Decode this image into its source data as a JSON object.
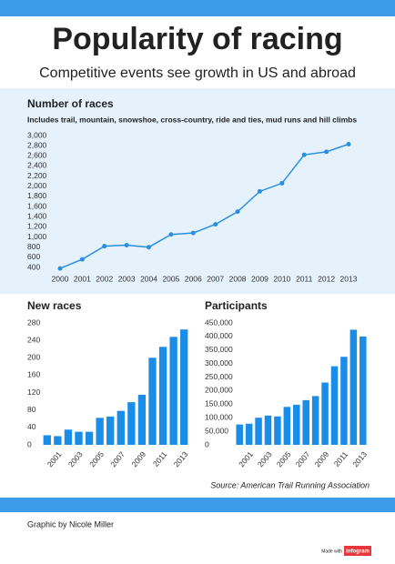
{
  "header": {
    "title": "Popularity of racing",
    "subtitle": "Competitive events see growth in US and abroad"
  },
  "chart_data": [
    {
      "type": "line",
      "title": "Number of races",
      "subtitle": "Includes trail, mountain, snowshoe, cross-country, ride and ties, mud runs and hill climbs",
      "categories": [
        "2000",
        "2001",
        "2002",
        "2003",
        "2004",
        "2005",
        "2006",
        "2007",
        "2008",
        "2009",
        "2010",
        "2011",
        "2012",
        "2013"
      ],
      "values": [
        380,
        560,
        820,
        840,
        800,
        1050,
        1080,
        1250,
        1500,
        1900,
        2060,
        2620,
        2680,
        2830
      ],
      "color": "#2b8fe0",
      "ylim": [
        400,
        3000
      ],
      "yticks": [
        400,
        600,
        800,
        {
          "value": 1000,
          "label": "1,000"
        },
        {
          "value": 1200,
          "label": "1,200"
        },
        {
          "value": 1400,
          "label": "1,400"
        },
        {
          "value": 1600,
          "label": "1,600"
        },
        {
          "value": 1800,
          "label": "1,800"
        },
        {
          "value": 2000,
          "label": "2,000"
        },
        {
          "value": 2200,
          "label": "2,200"
        },
        {
          "value": 2400,
          "label": "2,400"
        },
        {
          "value": 2600,
          "label": "2,600"
        },
        {
          "value": 2800,
          "label": "2,800"
        },
        {
          "value": 3000,
          "label": "3,000"
        }
      ]
    },
    {
      "type": "bar",
      "title": "New races",
      "categories": [
        null,
        "2001",
        null,
        "2003",
        null,
        "2005",
        null,
        "2007",
        null,
        "2009",
        null,
        "2011",
        null,
        "2013"
      ],
      "values": [
        22,
        20,
        35,
        30,
        30,
        62,
        65,
        78,
        98,
        115,
        200,
        225,
        248,
        265
      ],
      "color": "#1a8de8",
      "ylim": [
        0,
        280
      ],
      "yticks": [
        0,
        40,
        80,
        120,
        160,
        200,
        240,
        280
      ]
    },
    {
      "type": "bar",
      "title": "Participants",
      "categories": [
        null,
        "2001",
        null,
        "2003",
        null,
        "2005",
        null,
        "2007",
        null,
        "2009",
        null,
        "2011",
        null,
        "2013"
      ],
      "values": [
        75000,
        78000,
        100000,
        108000,
        105000,
        140000,
        148000,
        165000,
        180000,
        230000,
        290000,
        325000,
        425000,
        400000
      ],
      "color": "#1a8de8",
      "ylim": [
        0,
        450000
      ],
      "yticks": [
        0,
        {
          "value": 50000,
          "label": "50,000"
        },
        {
          "value": 100000,
          "label": "100,000"
        },
        {
          "value": 150000,
          "label": "150,000"
        },
        {
          "value": 200000,
          "label": "200,000"
        },
        {
          "value": 250000,
          "label": "250,000"
        },
        {
          "value": 300000,
          "label": "300,000"
        },
        {
          "value": 350000,
          "label": "350,000"
        },
        {
          "value": 400000,
          "label": "400,000"
        },
        {
          "value": 450000,
          "label": "450,000"
        }
      ]
    }
  ],
  "footer": {
    "source": "Source: American Trail Running Association",
    "credit": "Graphic by Nicole Miller",
    "made_with": "Made with",
    "brand": "infogram"
  }
}
